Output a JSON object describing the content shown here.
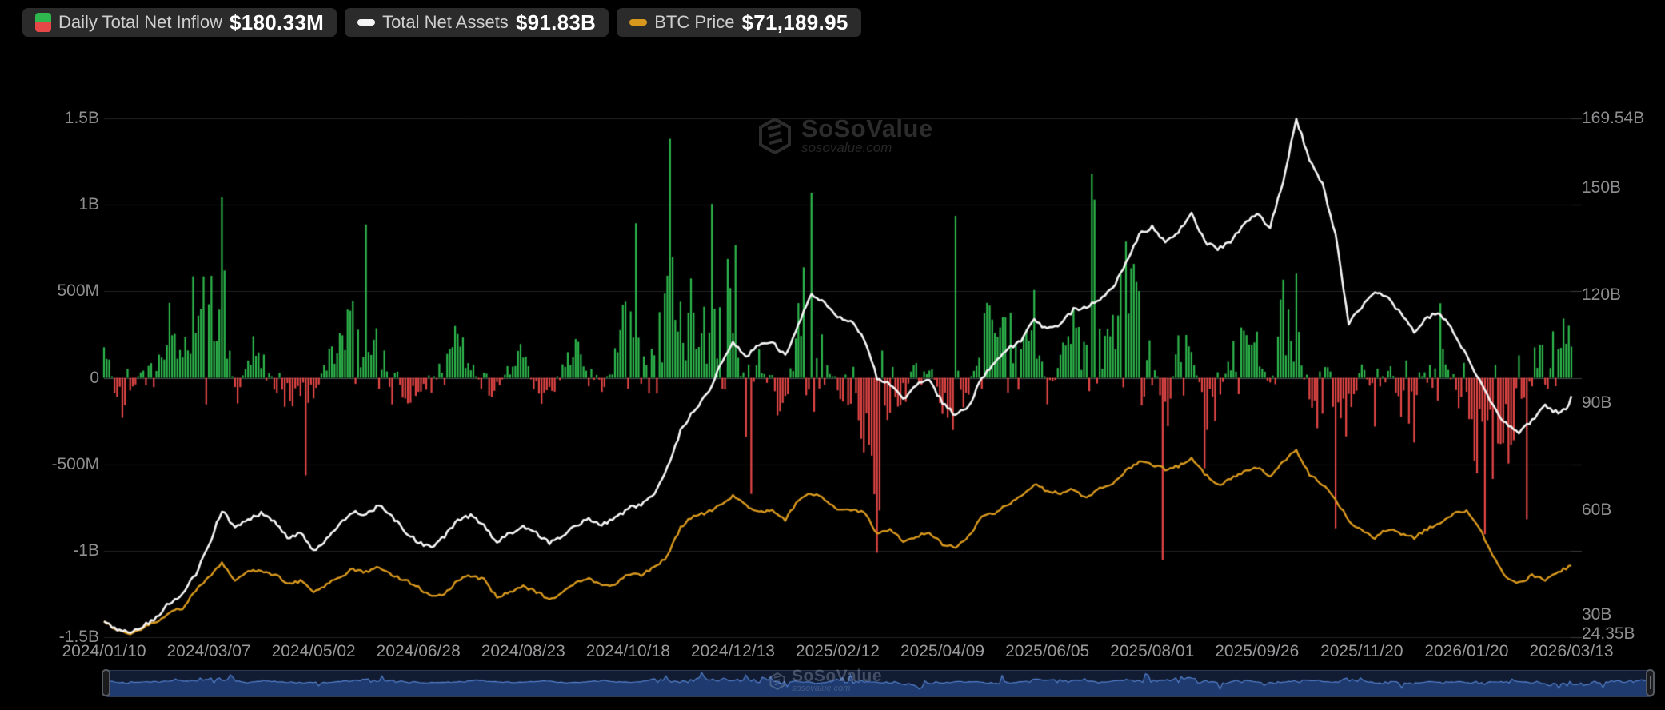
{
  "legend": {
    "inflow": {
      "label": "Daily Total Net Inflow",
      "value": "$180.33M"
    },
    "assets": {
      "label": "Total Net Assets",
      "value": "$91.83B"
    },
    "btc": {
      "label": "BTC Price",
      "value": "$71,189.95"
    }
  },
  "watermark": {
    "title": "SoSoValue",
    "subtitle": "sosovalue.com"
  },
  "axes": {
    "left_ticks": [
      "1.5B",
      "1B",
      "500M",
      "0",
      "-500M",
      "-1B",
      "-1.5B"
    ],
    "right_ticks": [
      "169.54B",
      "150B",
      "120B",
      "90B",
      "60B",
      "30B",
      "24.35B"
    ],
    "x_ticks": [
      "2024/01/10",
      "2024/03/07",
      "2024/05/02",
      "2024/06/28",
      "2024/08/23",
      "2024/10/18",
      "2024/12/13",
      "2025/02/12",
      "2025/04/09",
      "2025/06/05",
      "2025/08/01",
      "2025/09/26",
      "2025/11/20",
      "2026/01/20",
      "2026/03/13"
    ]
  },
  "chart_data": {
    "type": [
      "bar",
      "line",
      "line"
    ],
    "title": "Bitcoin spot ETF daily flows, total net assets and BTC price",
    "x_range": [
      "2024/01/10",
      "2026/03/13"
    ],
    "n_points": 561,
    "points_per_x_tick": 40,
    "sample_step_trading_days": 5,
    "left_axis": {
      "unit": "USD",
      "tick_values_m": [
        1500,
        1000,
        500,
        0,
        -500,
        -1000,
        -1500
      ]
    },
    "right_axis": {
      "unit": "USD billions",
      "min_b": 24.35,
      "max_b": 169.54,
      "tick_values_b": [
        169.54,
        150,
        120,
        90,
        60,
        30,
        24.35
      ]
    },
    "series": [
      {
        "name": "Daily Total Net Inflow",
        "type": "bar",
        "axis": "left",
        "unit": "M USD",
        "last_value_m": 180.33,
        "weekly_avg_m": [
          180,
          -120,
          -90,
          60,
          140,
          210,
          110,
          380,
          260,
          420,
          -130,
          130,
          90,
          -40,
          -110,
          -60,
          -90,
          90,
          160,
          210,
          70,
          230,
          -90,
          -110,
          -50,
          -40,
          140,
          200,
          90,
          -70,
          -50,
          60,
          110,
          -80,
          -110,
          70,
          140,
          160,
          -60,
          90,
          280,
          180,
          240,
          330,
          390,
          420,
          140,
          380,
          310,
          -180,
          90,
          -90,
          -140,
          330,
          380,
          90,
          -60,
          -90,
          -230,
          -420,
          -140,
          -110,
          110,
          60,
          -110,
          -170,
          -60,
          290,
          140,
          190,
          140,
          280,
          -90,
          110,
          230,
          140,
          170,
          190,
          390,
          320,
          90,
          -200,
          140,
          190,
          -230,
          -90,
          80,
          190,
          140,
          -60,
          280,
          230,
          -160,
          -120,
          -90,
          -260,
          90,
          -140,
          110,
          -150,
          -220,
          150,
          220,
          -80,
          -180,
          -280,
          -360,
          -240,
          -220,
          140,
          90,
          160,
          220
        ],
        "notable_days_m": {
          "45": 1043,
          "77": -564,
          "100": 886,
          "203": 893,
          "216": 1382,
          "232": 1005,
          "241": 766,
          "247": -671,
          "270": 1070,
          "295": -1012,
          "325": 936,
          "377": 1179,
          "378": 1030,
          "404": -1053,
          "420": -523,
          "455": 602,
          "470": -870,
          "527": -905,
          "543": -818,
          "560": 180.33
        }
      },
      {
        "name": "Total Net Assets",
        "type": "line",
        "axis": "right",
        "unit": "B USD",
        "last_value_b": 91.83,
        "peak_b": 169.54,
        "start_b": 28.5,
        "weekly_b": [
          28.5,
          26.2,
          25.9,
          27.5,
          30,
          34,
          36.5,
          42,
          50,
          60,
          55,
          57.5,
          59,
          57,
          52,
          53.5,
          48.5,
          52,
          56,
          59.5,
          58.5,
          61.5,
          58,
          54,
          51,
          49.5,
          52.5,
          57,
          58.5,
          55.5,
          51,
          53.5,
          55.5,
          53.5,
          50.5,
          52.5,
          55.5,
          57.5,
          56,
          57.5,
          60.5,
          61.5,
          64,
          72,
          82,
          88,
          92,
          100,
          107,
          103,
          106,
          107,
          103,
          112,
          120,
          118,
          114,
          113,
          108,
          97,
          95,
          91,
          95,
          96,
          90,
          86.5,
          89,
          97,
          101,
          105,
          107.5,
          113,
          110.5,
          112,
          116,
          116.5,
          119,
          122,
          129,
          137,
          139,
          135,
          138,
          143,
          135,
          133,
          135,
          140,
          143,
          139,
          152,
          169.5,
          158,
          151,
          137,
          112,
          117,
          121,
          119,
          115,
          110,
          114,
          115,
          110,
          103,
          96,
          89,
          84,
          81.5,
          85,
          89,
          87,
          89.5
        ]
      },
      {
        "name": "BTC Price",
        "type": "line",
        "axis": "hidden",
        "unit": "K USD",
        "last_value_k": 71.19,
        "peak_k": 126.1,
        "start_k": 46.6,
        "weekly_k": [
          45.5,
          41.5,
          39.5,
          42.5,
          45,
          49.5,
          51.5,
          60,
          66,
          72,
          64.5,
          69,
          68.5,
          67,
          63,
          64,
          59,
          62.5,
          65.5,
          69.5,
          68,
          70.5,
          66.5,
          64.5,
          61,
          56.5,
          58,
          64.5,
          66.5,
          64.5,
          56.5,
          59,
          61.5,
          59,
          55.5,
          58.5,
          63,
          65,
          61.5,
          62.5,
          67.5,
          67,
          70,
          75.5,
          88.5,
          94.5,
          95.5,
          99,
          103.5,
          98.5,
          95.5,
          97,
          92,
          101.5,
          104.5,
          101.5,
          97,
          96.5,
          96,
          86,
          88,
          82.5,
          84.5,
          86.5,
          81,
          79.5,
          84.5,
          93.5,
          95.5,
          99.5,
          103.5,
          108.5,
          105.5,
          104.5,
          106.5,
          102,
          106.5,
          108.5,
          115,
          119,
          117.5,
          115.5,
          117,
          120.5,
          113.5,
          108,
          111,
          114,
          116.5,
          112,
          119,
          124.5,
          113,
          108.5,
          101.5,
          92,
          87,
          84,
          88,
          86,
          84,
          88,
          91,
          95,
          96.5,
          88,
          76,
          66,
          63,
          66.5,
          64.5,
          68,
          71
        ]
      }
    ]
  },
  "colors": {
    "background": "#000000",
    "pill_bg": "#2b2b2b",
    "green": "#2eb84d",
    "red": "#e64747",
    "assets_line": "#f5f5f5",
    "btc_line": "#d8981e",
    "grid": "#222226",
    "zero_line": "#4a4a4f",
    "tick": "#3c3c40",
    "axis_text": "#8e8e90",
    "dz_bg": "#111c33",
    "dz_fill": "#1e3a6e",
    "dz_line": "#5581cd",
    "dz_border": "#2c3a58"
  }
}
